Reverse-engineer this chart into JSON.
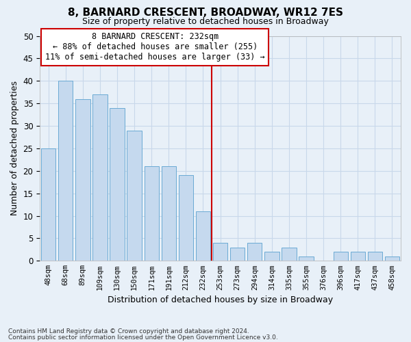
{
  "title1": "8, BARNARD CRESCENT, BROADWAY, WR12 7ES",
  "title2": "Size of property relative to detached houses in Broadway",
  "xlabel": "Distribution of detached houses by size in Broadway",
  "ylabel": "Number of detached properties",
  "categories": [
    "48sqm",
    "68sqm",
    "89sqm",
    "109sqm",
    "130sqm",
    "150sqm",
    "171sqm",
    "191sqm",
    "212sqm",
    "232sqm",
    "253sqm",
    "273sqm",
    "294sqm",
    "314sqm",
    "335sqm",
    "355sqm",
    "376sqm",
    "396sqm",
    "417sqm",
    "437sqm",
    "458sqm"
  ],
  "values": [
    25,
    40,
    36,
    37,
    34,
    29,
    21,
    21,
    19,
    11,
    4,
    3,
    4,
    2,
    3,
    1,
    0,
    2,
    2,
    2,
    1
  ],
  "bar_color": "#c5d9ee",
  "bar_edge_color": "#6aaad4",
  "vline_color": "#cc0000",
  "annotation_text": "8 BARNARD CRESCENT: 232sqm\n← 88% of detached houses are smaller (255)\n11% of semi-detached houses are larger (33) →",
  "annotation_box_color": "#cc0000",
  "ylim": [
    0,
    50
  ],
  "yticks": [
    0,
    5,
    10,
    15,
    20,
    25,
    30,
    35,
    40,
    45,
    50
  ],
  "grid_color": "#c8d8ea",
  "background_color": "#e8f0f8",
  "footnote1": "Contains HM Land Registry data © Crown copyright and database right 2024.",
  "footnote2": "Contains public sector information licensed under the Open Government Licence v3.0."
}
